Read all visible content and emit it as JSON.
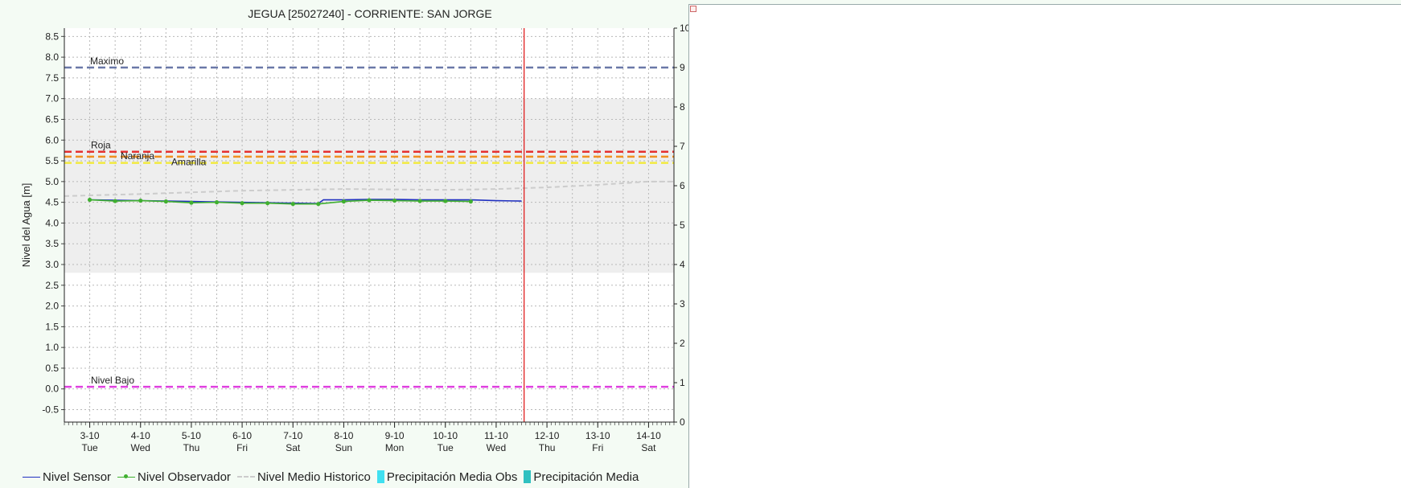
{
  "chart_data": {
    "type": "line",
    "title": "JEGUA [25027240] - CORRIENTE: SAN JORGE",
    "ylabel": "Nivel del Agua [m]",
    "ylim": [
      -0.8,
      8.7
    ],
    "yticks": [
      "8.5",
      "8.0",
      "7.5",
      "7.0",
      "6.5",
      "6.0",
      "5.5",
      "5.0",
      "4.5",
      "4.0",
      "3.5",
      "3.0",
      "2.5",
      "2.0",
      "1.5",
      "1.0",
      "0.5",
      "0.0",
      "-0.5"
    ],
    "y2ticks": [
      "10",
      "9",
      "8",
      "7",
      "6",
      "5",
      "4",
      "3",
      "2",
      "1",
      "0"
    ],
    "xlim": [
      2.5,
      14.5
    ],
    "xticks": [
      {
        "date": "3-10",
        "day": "Tue"
      },
      {
        "date": "4-10",
        "day": "Wed"
      },
      {
        "date": "5-10",
        "day": "Thu"
      },
      {
        "date": "6-10",
        "day": "Fri"
      },
      {
        "date": "7-10",
        "day": "Sat"
      },
      {
        "date": "8-10",
        "day": "Sun"
      },
      {
        "date": "9-10",
        "day": "Mon"
      },
      {
        "date": "10-10",
        "day": "Tue"
      },
      {
        "date": "11-10",
        "day": "Wed"
      },
      {
        "date": "12-10",
        "day": "Thu"
      },
      {
        "date": "13-10",
        "day": "Fri"
      },
      {
        "date": "14-10",
        "day": "Sat"
      }
    ],
    "grid": true,
    "current_time_x": 11.55,
    "historic_band": [
      2.8,
      7.0
    ],
    "thresholds": [
      {
        "label": "Maximo",
        "value": 7.75,
        "color": "#6a78a8"
      },
      {
        "label": "Roja",
        "value": 5.72,
        "color": "#e53030"
      },
      {
        "label": "Naranja",
        "value": 5.6,
        "color": "#f09020"
      },
      {
        "label": "Amarilla",
        "value": 5.45,
        "color": "#f2ea40"
      },
      {
        "label": "Nivel Bajo",
        "value": 0.05,
        "color": "#e040e0"
      }
    ],
    "series": [
      {
        "name": "Nivel Sensor",
        "color": "#2030c0",
        "x": [
          3.0,
          3.5,
          4.0,
          4.5,
          5.0,
          5.5,
          6.0,
          6.5,
          7.0,
          7.5,
          7.6,
          8.0,
          8.5,
          9.0,
          9.5,
          10.0,
          10.5,
          11.0,
          11.5
        ],
        "y": [
          4.56,
          4.55,
          4.54,
          4.53,
          4.52,
          4.51,
          4.5,
          4.49,
          4.48,
          4.47,
          4.56,
          4.56,
          4.57,
          4.57,
          4.56,
          4.56,
          4.56,
          4.54,
          4.53
        ]
      },
      {
        "name": "Nivel Observador",
        "color": "#40b030",
        "x": [
          3.0,
          3.5,
          4.0,
          4.5,
          5.0,
          5.5,
          6.0,
          6.5,
          7.0,
          7.5,
          8.0,
          8.5,
          9.0,
          9.5,
          10.0,
          10.5
        ],
        "y": [
          4.56,
          4.53,
          4.54,
          4.52,
          4.49,
          4.5,
          4.48,
          4.48,
          4.46,
          4.46,
          4.52,
          4.55,
          4.54,
          4.53,
          4.53,
          4.52
        ]
      },
      {
        "name": "Nivel Medio Historico",
        "color": "#cccccc",
        "x": [
          2.5,
          4.0,
          6.0,
          8.0,
          10.0,
          11.0,
          12.0,
          13.0,
          14.0,
          14.5
        ],
        "y": [
          4.65,
          4.7,
          4.78,
          4.82,
          4.8,
          4.82,
          4.86,
          4.92,
          5.0,
          5.0
        ]
      }
    ],
    "legend": [
      {
        "label": "Nivel Sensor",
        "kind": "line",
        "color": "#2030c0"
      },
      {
        "label": "Nivel Observador",
        "kind": "line-dot",
        "color": "#40b030"
      },
      {
        "label": "Nivel Medio Historico",
        "kind": "dash",
        "color": "#cccccc"
      },
      {
        "label": "Precipitación Media Obs",
        "kind": "box",
        "color": "#40e0f0"
      },
      {
        "label": "Precipitación Media",
        "kind": "box",
        "color": "#30c0c0"
      }
    ]
  }
}
